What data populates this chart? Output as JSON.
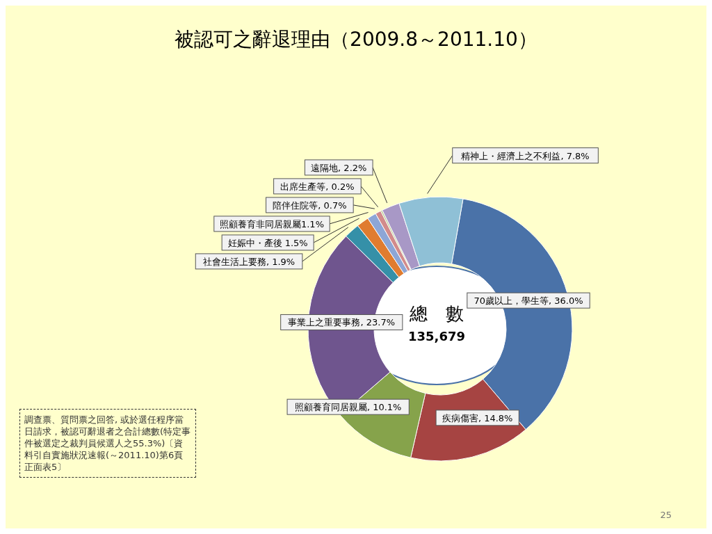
{
  "chart_data": {
    "type": "donut",
    "title": "被認可之辭退理由（2009.8～2011.10）",
    "categories": [
      "70歲以上，學生等",
      "疾病傷害",
      "照顧養育同居親屬",
      "事業上之重要事務",
      "社會生活上要務",
      "妊娠中・產後",
      "照顧養育非同居親屬",
      "陪伴住院等",
      "出席生產等",
      "遠隔地",
      "精神上・經濟上之不利益"
    ],
    "values": [
      36.0,
      14.8,
      10.1,
      23.7,
      1.9,
      1.5,
      1.1,
      0.7,
      0.2,
      2.2,
      7.8
    ],
    "colors": [
      "#4a72a8",
      "#a64442",
      "#86a34b",
      "#6f558e",
      "#3590a8",
      "#e07c2f",
      "#8da6d6",
      "#d28b8b",
      "#b8c98e",
      "#a898c6",
      "#8fc0d6"
    ],
    "value_labels": [
      ", 36.0%",
      ", 14.8%",
      ", 10.1%",
      ", 23.7%",
      ", 1.9%",
      " 1.5%",
      "1.1%",
      ", 0.7%",
      ", 0.2%",
      ", 2.2%",
      ", 7.8%"
    ],
    "legend": false,
    "annotations": [
      "總　數",
      "135,679",
      "調查票、質問票之回答, 或於選任程序當日請求，被認可辭退者之合計總數(特定事件被選定之裁判員候選人之55.3%)〔資料引自實施狀況速報(～2011.10)第6頁正面表5〕",
      "25"
    ]
  }
}
